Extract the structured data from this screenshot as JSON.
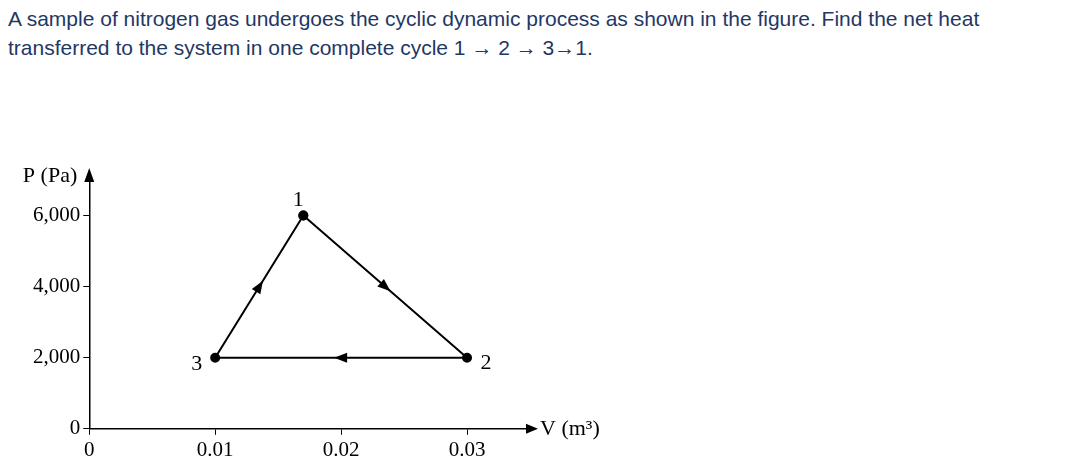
{
  "question": "A sample of nitrogen gas undergoes the cyclic dynamic process as shown in the figure. Find the net heat transferred to the system in one complete cycle 1 → 2 → 3→1.",
  "chart_data": {
    "type": "line",
    "x_label": "V (m³)",
    "y_label": "P (Pa)",
    "x": [
      0.017,
      0.03,
      0.01,
      0.017
    ],
    "values": [
      6000,
      2000,
      2000,
      6000
    ],
    "point_labels": [
      "1",
      "2",
      "3",
      null
    ],
    "color": "#000000",
    "marker": "circle",
    "line_style": "solid",
    "xlim": [
      0,
      0.035
    ],
    "xticks": [
      0,
      0.01,
      0.02,
      0.03
    ],
    "ylim": [
      0,
      7000
    ],
    "yticks": [
      0,
      {
        "value": 2000,
        "label": "2,000"
      },
      {
        "value": 4000,
        "label": "4,000"
      },
      {
        "value": 6000,
        "label": "6,000"
      }
    ],
    "grid": false
  }
}
